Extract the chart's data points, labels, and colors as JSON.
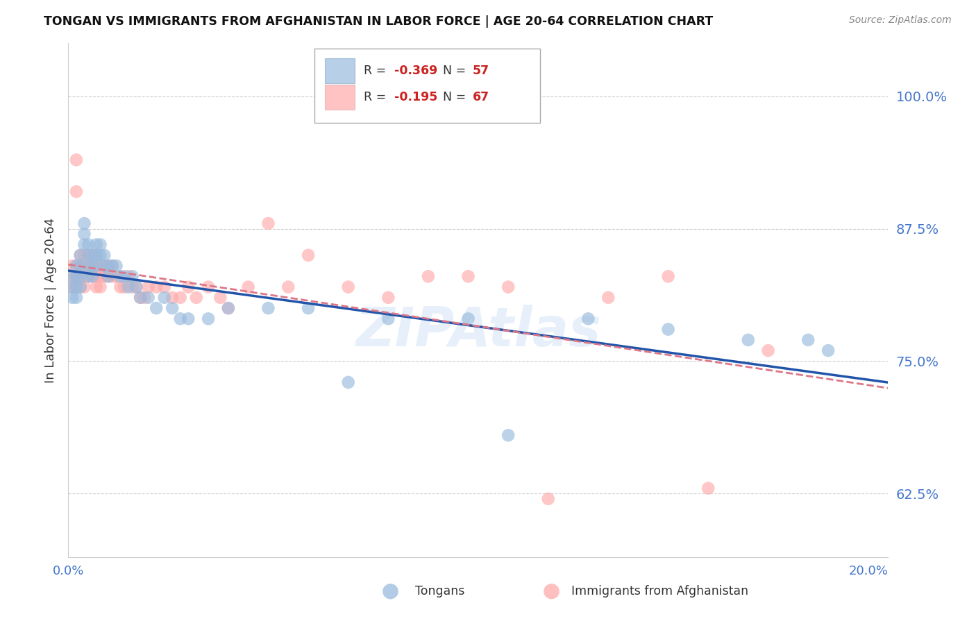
{
  "title": "TONGAN VS IMMIGRANTS FROM AFGHANISTAN IN LABOR FORCE | AGE 20-64 CORRELATION CHART",
  "source": "Source: ZipAtlas.com",
  "ylabel": "In Labor Force | Age 20-64",
  "ytick_labels": [
    "62.5%",
    "75.0%",
    "87.5%",
    "100.0%"
  ],
  "ytick_values": [
    0.625,
    0.75,
    0.875,
    1.0
  ],
  "xtick_values": [
    0.0,
    0.04,
    0.08,
    0.12,
    0.16,
    0.2
  ],
  "xtick_labels": [
    "0.0%",
    "",
    "",
    "",
    "",
    "20.0%"
  ],
  "xlim": [
    0.0,
    0.205
  ],
  "ylim": [
    0.565,
    1.05
  ],
  "tongan_color": "#99bbdd",
  "afghan_color": "#ffaaaa",
  "tongan_line_color": "#2255aa",
  "afghan_line_color": "#dd7788",
  "watermark": "ZIPAtlas",
  "tongan_x": [
    0.001,
    0.001,
    0.001,
    0.002,
    0.002,
    0.002,
    0.002,
    0.003,
    0.003,
    0.003,
    0.003,
    0.004,
    0.004,
    0.004,
    0.005,
    0.005,
    0.005,
    0.005,
    0.006,
    0.006,
    0.006,
    0.007,
    0.007,
    0.007,
    0.008,
    0.008,
    0.009,
    0.009,
    0.01,
    0.01,
    0.011,
    0.012,
    0.013,
    0.014,
    0.015,
    0.016,
    0.017,
    0.018,
    0.02,
    0.022,
    0.024,
    0.026,
    0.028,
    0.03,
    0.035,
    0.04,
    0.05,
    0.06,
    0.07,
    0.08,
    0.1,
    0.11,
    0.13,
    0.15,
    0.17,
    0.185,
    0.19
  ],
  "tongan_y": [
    0.83,
    0.82,
    0.81,
    0.84,
    0.83,
    0.82,
    0.81,
    0.85,
    0.84,
    0.83,
    0.82,
    0.88,
    0.87,
    0.86,
    0.86,
    0.85,
    0.84,
    0.83,
    0.85,
    0.84,
    0.83,
    0.86,
    0.85,
    0.84,
    0.86,
    0.85,
    0.85,
    0.84,
    0.84,
    0.83,
    0.84,
    0.84,
    0.83,
    0.83,
    0.82,
    0.83,
    0.82,
    0.81,
    0.81,
    0.8,
    0.81,
    0.8,
    0.79,
    0.79,
    0.79,
    0.8,
    0.8,
    0.8,
    0.73,
    0.79,
    0.79,
    0.68,
    0.79,
    0.78,
    0.77,
    0.77,
    0.76
  ],
  "afghan_x": [
    0.001,
    0.001,
    0.001,
    0.002,
    0.002,
    0.002,
    0.002,
    0.002,
    0.003,
    0.003,
    0.003,
    0.003,
    0.004,
    0.004,
    0.004,
    0.004,
    0.005,
    0.005,
    0.005,
    0.006,
    0.006,
    0.006,
    0.007,
    0.007,
    0.007,
    0.007,
    0.008,
    0.008,
    0.008,
    0.009,
    0.009,
    0.01,
    0.01,
    0.011,
    0.011,
    0.012,
    0.013,
    0.014,
    0.015,
    0.016,
    0.017,
    0.018,
    0.019,
    0.02,
    0.022,
    0.024,
    0.026,
    0.028,
    0.03,
    0.032,
    0.035,
    0.038,
    0.04,
    0.045,
    0.05,
    0.055,
    0.06,
    0.07,
    0.08,
    0.09,
    0.1,
    0.11,
    0.12,
    0.135,
    0.15,
    0.16,
    0.175
  ],
  "afghan_y": [
    0.84,
    0.83,
    0.82,
    0.94,
    0.91,
    0.84,
    0.83,
    0.82,
    0.85,
    0.84,
    0.83,
    0.82,
    0.85,
    0.84,
    0.83,
    0.82,
    0.85,
    0.84,
    0.83,
    0.85,
    0.84,
    0.83,
    0.85,
    0.84,
    0.83,
    0.82,
    0.84,
    0.83,
    0.82,
    0.84,
    0.83,
    0.84,
    0.83,
    0.84,
    0.83,
    0.83,
    0.82,
    0.82,
    0.83,
    0.82,
    0.82,
    0.81,
    0.81,
    0.82,
    0.82,
    0.82,
    0.81,
    0.81,
    0.82,
    0.81,
    0.82,
    0.81,
    0.8,
    0.82,
    0.88,
    0.82,
    0.85,
    0.82,
    0.81,
    0.83,
    0.83,
    0.82,
    0.62,
    0.81,
    0.83,
    0.63,
    0.76
  ]
}
